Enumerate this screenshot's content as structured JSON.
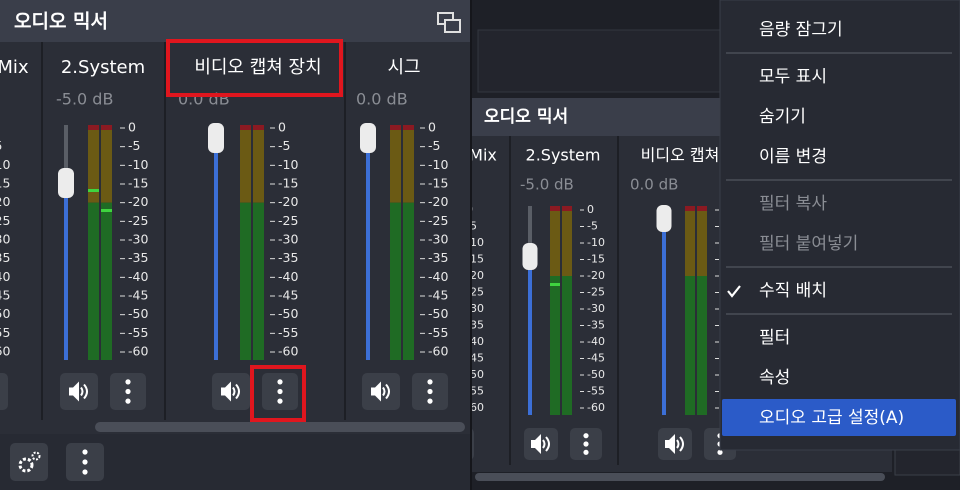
{
  "left_panel": {
    "title": "오디오 믹서",
    "channels": [
      {
        "name": "Mix"
      },
      {
        "name": "2.System",
        "volume": "-5.0 dB"
      },
      {
        "name": "비디오 캡쳐 장치",
        "volume": "0.0 dB"
      },
      {
        "name": "시그",
        "volume": "0.0 dB"
      }
    ]
  },
  "right_panel": {
    "title": "오디오 믹서",
    "channels": [
      {
        "name": "Mix"
      },
      {
        "name": "2.System",
        "volume": "-5.0 dB"
      },
      {
        "name": "비디오 캡쳐",
        "volume": "0.0 dB"
      }
    ]
  },
  "meter_scale": [
    0,
    -5,
    -10,
    -15,
    -20,
    -25,
    -30,
    -35,
    -40,
    -45,
    -50,
    -55,
    -60
  ],
  "context_menu": {
    "groups": [
      [
        {
          "label": "음량 잠그기"
        }
      ],
      [
        {
          "label": "모두 표시"
        },
        {
          "label": "숨기기"
        },
        {
          "label": "이름 변경"
        }
      ],
      [
        {
          "label": "필터 복사",
          "enabled": false
        },
        {
          "label": "필터 붙여넣기",
          "enabled": false
        }
      ],
      [
        {
          "label": "수직 배치",
          "checked": true
        }
      ],
      [
        {
          "label": "필터"
        },
        {
          "label": "속성"
        },
        {
          "label": "오디오 고급 설정(A)",
          "highlighted": true
        }
      ]
    ]
  }
}
